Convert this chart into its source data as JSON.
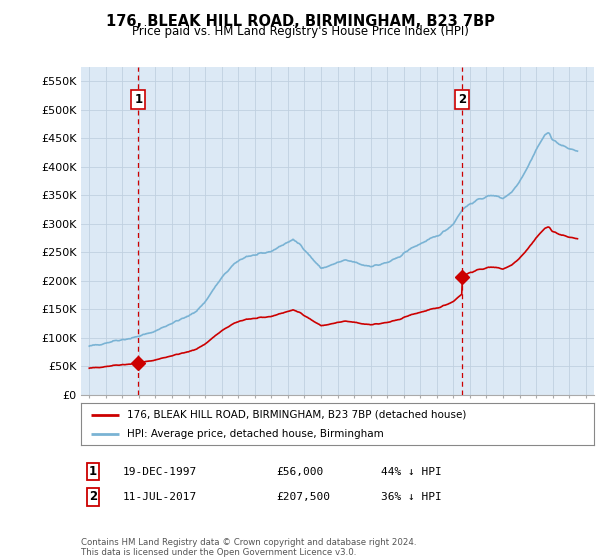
{
  "title": "176, BLEAK HILL ROAD, BIRMINGHAM, B23 7BP",
  "subtitle": "Price paid vs. HM Land Registry's House Price Index (HPI)",
  "legend_line1": "176, BLEAK HILL ROAD, BIRMINGHAM, B23 7BP (detached house)",
  "legend_line2": "HPI: Average price, detached house, Birmingham",
  "point1_label": "1",
  "point1_date": "19-DEC-1997",
  "point1_price": "£56,000",
  "point1_hpi": "44% ↓ HPI",
  "point1_year": 1997.97,
  "point1_value": 56000,
  "point2_label": "2",
  "point2_date": "11-JUL-2017",
  "point2_price": "£207,500",
  "point2_hpi": "36% ↓ HPI",
  "point2_year": 2017.53,
  "point2_value": 207500,
  "hpi_color": "#7ab3d4",
  "price_color": "#cc0000",
  "vline_color": "#cc0000",
  "chart_bg": "#dce9f5",
  "ylim_max": 575000,
  "yticks": [
    0,
    50000,
    100000,
    150000,
    200000,
    250000,
    300000,
    350000,
    400000,
    450000,
    500000,
    550000
  ],
  "footer": "Contains HM Land Registry data © Crown copyright and database right 2024.\nThis data is licensed under the Open Government Licence v3.0.",
  "background_color": "#ffffff",
  "grid_color": "#c0d0e0"
}
